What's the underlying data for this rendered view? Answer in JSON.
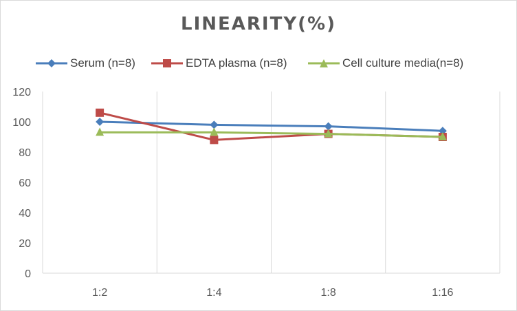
{
  "chart_data": {
    "type": "line",
    "title": "LINEARITY(%)",
    "categories": [
      "1:2",
      "1:4",
      "1:8",
      "1:16"
    ],
    "ylim": [
      0,
      120
    ],
    "yticks": [
      0,
      20,
      40,
      60,
      80,
      100,
      120
    ],
    "grid": "vertical",
    "legend_position": "top",
    "series": [
      {
        "name": "Serum (n=8)",
        "values": [
          100,
          98,
          97,
          94
        ],
        "color": "#4a7ebb",
        "marker": "diamond"
      },
      {
        "name": "EDTA plasma (n=8)",
        "values": [
          106,
          88,
          92,
          90
        ],
        "color": "#be4b48",
        "marker": "square"
      },
      {
        "name": "Cell culture media(n=8)",
        "values": [
          93,
          93,
          92,
          90
        ],
        "color": "#9bbb59",
        "marker": "triangle"
      }
    ]
  }
}
